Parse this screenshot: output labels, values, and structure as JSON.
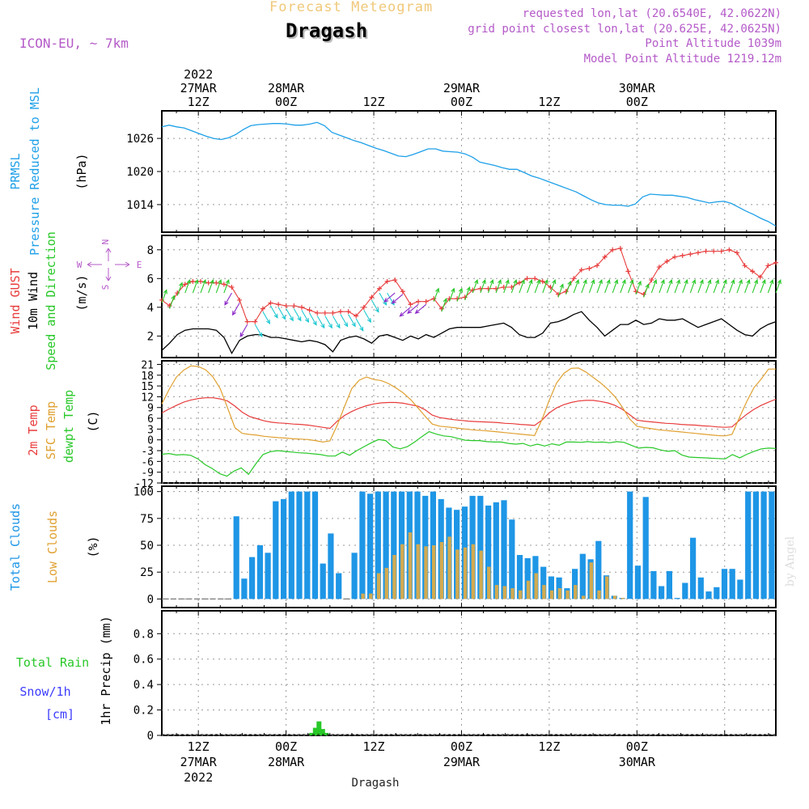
{
  "header": {
    "product": "Forecast Meteogram",
    "station": "Dragash",
    "model": "ICON-EU, ~ 7km",
    "requested": "requested lon,lat (20.6540E, 42.0622N)",
    "gridpoint": "grid point closest lon,lat (20.625E, 42.0625N)",
    "point_alt": "Point Altitude 1039m",
    "model_alt": "Model Point Altitude 1219.12m"
  },
  "footer": {
    "station": "Dragash",
    "credit": "by Angel"
  },
  "colors": {
    "pressure": "#1ea0e8",
    "gust": "#e83c3c",
    "wind": "#000000",
    "arrow_green": "#28c828",
    "arrow_cyan": "#1ec8d2",
    "arrow_purple": "#8c28c8",
    "temp": "#e83c3c",
    "sfc": "#e0a030",
    "dewpt": "#28c828",
    "total_clouds": "#1e96e6",
    "low_clouds": "#d2aa50",
    "rain": "#28c828",
    "snow": "#3c3cff",
    "header_purple": "#b45ac8",
    "header_orange": "#f0c87a"
  },
  "chart_data": [
    {
      "type": "line",
      "panel": "pressure",
      "ylabel": [
        "PRMSL",
        "Pressure Reduced to MSL"
      ],
      "units": "(hPa)",
      "ylim": [
        1009,
        1031
      ],
      "yticks": [
        1014,
        1020,
        1026
      ],
      "series": [
        {
          "name": "PRMSL",
          "values": [
            1028.1,
            1028.4,
            1028.1,
            1027.9,
            1027.4,
            1026.9,
            1026.4,
            1026.0,
            1025.8,
            1026.1,
            1026.7,
            1027.6,
            1028.3,
            1028.5,
            1028.6,
            1028.7,
            1028.7,
            1028.6,
            1028.4,
            1028.4,
            1028.6,
            1028.9,
            1028.3,
            1027.1,
            1026.6,
            1026.1,
            1025.6,
            1025.2,
            1024.7,
            1024.2,
            1023.8,
            1023.3,
            1022.8,
            1022.7,
            1023.1,
            1023.6,
            1024.1,
            1024.1,
            1023.7,
            1023.6,
            1023.5,
            1023.2,
            1022.6,
            1021.7,
            1021.4,
            1021.1,
            1020.7,
            1020.4,
            1020.4,
            1019.8,
            1019.2,
            1018.8,
            1018.3,
            1017.8,
            1017.3,
            1016.8,
            1016.3,
            1015.6,
            1014.9,
            1014.3,
            1014.0,
            1013.9,
            1013.9,
            1013.7,
            1014.1,
            1015.4,
            1015.9,
            1015.8,
            1015.7,
            1015.7,
            1015.5,
            1015.3,
            1014.9,
            1014.6,
            1014.3,
            1014.5,
            1014.6,
            1014.2,
            1013.5,
            1012.8,
            1012.2,
            1011.5,
            1010.9,
            1010.1
          ]
        }
      ]
    },
    {
      "type": "line",
      "panel": "wind",
      "ylabel": [
        "Wind GUST",
        "10m Wind",
        "Speed and Direction"
      ],
      "units": "(m/s)",
      "compass": [
        "N",
        "W",
        "E",
        "S"
      ],
      "ylim": [
        0.5,
        9.0
      ],
      "yticks": [
        2,
        4,
        6,
        8
      ],
      "series": [
        {
          "name": "Wind GUST",
          "values": [
            4.5,
            4.1,
            5.0,
            5.6,
            5.8,
            5.8,
            5.7,
            5.7,
            5.6,
            5.4,
            4.5,
            3.0,
            3.0,
            3.9,
            4.3,
            4.2,
            4.1,
            4.1,
            4.0,
            3.8,
            3.6,
            3.6,
            3.6,
            3.7,
            3.7,
            3.4,
            4.0,
            4.7,
            5.3,
            5.8,
            5.9,
            5.1,
            4.2,
            4.4,
            4.4,
            4.6,
            3.9,
            4.6,
            4.6,
            4.7,
            5.2,
            5.3,
            5.3,
            5.3,
            5.4,
            5.4,
            5.7,
            6.0,
            6.0,
            5.8,
            5.4,
            4.9,
            5.1,
            6.0,
            6.6,
            6.7,
            6.9,
            7.5,
            8.0,
            8.1,
            6.5,
            5.1,
            4.9,
            5.9,
            6.8,
            7.2,
            7.5,
            7.6,
            7.7,
            7.8,
            7.9,
            7.9,
            7.9,
            8.0,
            7.8,
            6.9,
            6.5,
            6.1,
            6.9,
            7.1
          ]
        },
        {
          "name": "10m Wind",
          "values": [
            1.0,
            1.5,
            2.1,
            2.4,
            2.5,
            2.5,
            2.5,
            2.4,
            1.9,
            0.8,
            1.7,
            2.0,
            2.1,
            2.1,
            1.9,
            1.9,
            1.8,
            1.7,
            1.6,
            1.7,
            1.6,
            1.4,
            0.9,
            1.7,
            1.9,
            2.0,
            1.8,
            1.5,
            2.0,
            2.1,
            1.9,
            1.7,
            2.0,
            1.8,
            2.1,
            1.9,
            2.2,
            2.5,
            2.6,
            2.6,
            2.6,
            2.6,
            2.7,
            2.8,
            2.9,
            2.6,
            2.1,
            1.9,
            1.9,
            2.2,
            2.9,
            3.0,
            3.2,
            3.5,
            3.7,
            3.1,
            2.6,
            2.0,
            2.4,
            2.8,
            2.8,
            3.1,
            2.8,
            2.9,
            3.2,
            3.1,
            3.1,
            3.2,
            2.9,
            2.6,
            2.8,
            3.0,
            3.2,
            2.8,
            2.4,
            2.1,
            2.0,
            2.5,
            2.8,
            3.0
          ]
        }
      ],
      "arrow_directions_deg": [
        200,
        200,
        200,
        200,
        200,
        200,
        200,
        200,
        200,
        30,
        30,
        30,
        330,
        330,
        330,
        330,
        330,
        330,
        330,
        330,
        330,
        330,
        330,
        330,
        330,
        330,
        330,
        330,
        330,
        330,
        50,
        50,
        50,
        50,
        50,
        200,
        200,
        200,
        200,
        200,
        200,
        200,
        200,
        200,
        200,
        200,
        200,
        200,
        200,
        200,
        200,
        200,
        200,
        200,
        200,
        200,
        200,
        200,
        200,
        200,
        200,
        200,
        200,
        200,
        200,
        200,
        200,
        200,
        200,
        200,
        200,
        200,
        200,
        200,
        200,
        200,
        200,
        200,
        200,
        200
      ]
    },
    {
      "type": "line",
      "panel": "temperature",
      "ylabel": [
        "2m Temp",
        "SFC Temp",
        "dewpt Temp"
      ],
      "units": "(C)",
      "ylim": [
        -12,
        22
      ],
      "yticks": [
        -12,
        -9,
        -6,
        -3,
        0,
        3,
        6,
        9,
        12,
        15,
        18,
        21
      ],
      "series": [
        {
          "name": "2m Temp",
          "values": [
            7.5,
            8.6,
            9.6,
            10.5,
            11.1,
            11.5,
            11.7,
            11.7,
            11.4,
            10.8,
            9.4,
            7.7,
            6.5,
            5.9,
            5.3,
            4.9,
            4.7,
            4.6,
            4.4,
            4.3,
            4.1,
            3.8,
            3.5,
            3.2,
            5.2,
            6.8,
            7.9,
            8.8,
            9.5,
            10.0,
            10.3,
            10.4,
            10.4,
            10.2,
            9.8,
            9.4,
            8.4,
            6.9,
            6.2,
            5.9,
            5.6,
            5.4,
            5.2,
            5.1,
            5.0,
            4.9,
            4.8,
            4.6,
            4.5,
            4.3,
            4.2,
            4.0,
            5.5,
            7.5,
            8.9,
            9.8,
            10.4,
            10.8,
            11.0,
            11.0,
            10.7,
            10.3,
            9.6,
            8.5,
            7.0,
            5.5,
            5.2,
            5.0,
            4.8,
            4.6,
            4.5,
            4.3,
            4.2,
            4.1,
            3.9,
            3.8,
            3.6,
            3.5,
            3.6,
            5.4,
            7.1,
            8.5,
            9.6,
            10.5,
            11.3
          ]
        },
        {
          "name": "SFC Temp",
          "values": [
            10.0,
            14.0,
            17.5,
            19.4,
            20.6,
            20.4,
            19.5,
            17.5,
            14.2,
            8.9,
            3.4,
            1.8,
            1.5,
            1.3,
            1.0,
            0.8,
            0.6,
            0.5,
            0.3,
            0.2,
            0.1,
            -0.2,
            -0.6,
            -0.3,
            4.1,
            9.3,
            14.3,
            16.6,
            17.5,
            16.8,
            16.5,
            15.7,
            14.5,
            13.1,
            11.3,
            9.0,
            6.6,
            4.4,
            3.8,
            3.6,
            3.4,
            3.1,
            2.9,
            2.7,
            2.6,
            2.4,
            2.2,
            2.0,
            1.8,
            1.6,
            1.4,
            1.2,
            5.6,
            11.0,
            15.8,
            18.5,
            19.9,
            20.0,
            18.9,
            17.4,
            15.9,
            14.1,
            12.0,
            9.1,
            5.8,
            3.8,
            3.4,
            3.1,
            2.8,
            2.6,
            2.4,
            2.2,
            2.0,
            1.8,
            1.6,
            1.4,
            1.2,
            1.1,
            1.5,
            6.1,
            10.6,
            14.5,
            16.9,
            19.7,
            19.7
          ]
        },
        {
          "name": "dewpt Temp",
          "values": [
            -4.0,
            -3.8,
            -4.2,
            -4.1,
            -4.3,
            -5.3,
            -6.9,
            -8.0,
            -9.4,
            -10.1,
            -8.7,
            -7.8,
            -9.6,
            -6.7,
            -4.1,
            -3.3,
            -3.0,
            -3.2,
            -3.4,
            -3.6,
            -3.7,
            -3.9,
            -4.1,
            -4.5,
            -4.5,
            -3.4,
            -4.3,
            -3.0,
            -1.9,
            -0.8,
            0.1,
            -0.2,
            -2.0,
            -2.5,
            -1.9,
            -0.6,
            0.9,
            2.3,
            1.6,
            1.1,
            0.9,
            0.4,
            -0.1,
            -0.2,
            -0.2,
            -0.5,
            -0.6,
            -0.6,
            -1.0,
            -1.2,
            -1.0,
            -1.7,
            -1.2,
            -1.7,
            -1.1,
            -1.5,
            -0.6,
            -0.6,
            -0.7,
            -0.5,
            -0.7,
            -0.6,
            -0.8,
            -0.5,
            -0.7,
            -1.5,
            -2.3,
            -2.1,
            -2.2,
            -2.8,
            -3.2,
            -3.0,
            -4.2,
            -4.8,
            -4.9,
            -5.0,
            -5.1,
            -5.2,
            -5.3,
            -4.1,
            -5.0,
            -4.0,
            -3.2,
            -2.5,
            -2.3,
            -2.4
          ]
        }
      ]
    },
    {
      "type": "bar",
      "panel": "clouds",
      "ylabel": [
        "Total Clouds",
        "Low Clouds"
      ],
      "units": "(%)",
      "ylim": [
        -8,
        105
      ],
      "yticks": [
        0,
        25,
        50,
        75,
        100
      ],
      "series": [
        {
          "name": "Total Clouds",
          "values": [
            0,
            0,
            0,
            0,
            0,
            0,
            0,
            0,
            0,
            77,
            19,
            39,
            50,
            43,
            91,
            93,
            100,
            100,
            100,
            100,
            33,
            61,
            24,
            0,
            43,
            100,
            98,
            100,
            100,
            100,
            100,
            100,
            100,
            96,
            100,
            93,
            85,
            83,
            86,
            96,
            96,
            87,
            90,
            92,
            74,
            41,
            38,
            40,
            30,
            21,
            20,
            10,
            28,
            42,
            37,
            54,
            22,
            3,
            1,
            100,
            31,
            95,
            26,
            12,
            26,
            1,
            15,
            57,
            20,
            7,
            11,
            28,
            28,
            18,
            100,
            100,
            100,
            100
          ]
        },
        {
          "name": "Low Clouds",
          "values": [
            0,
            0,
            0,
            0,
            0,
            0,
            0,
            0,
            0,
            0,
            0,
            0,
            0,
            0,
            0,
            0,
            0,
            0,
            0,
            0,
            0,
            0,
            0,
            0,
            0,
            5,
            5,
            24,
            29,
            41,
            51,
            62,
            51,
            49,
            50,
            53,
            58,
            46,
            48,
            51,
            45,
            30,
            13,
            12,
            10,
            8,
            17,
            24,
            13,
            8,
            10,
            8,
            13,
            3,
            34,
            8,
            21,
            3,
            1,
            0,
            0,
            0,
            0,
            0,
            0,
            0,
            0,
            0,
            0,
            0,
            0,
            0,
            0,
            0,
            0,
            0,
            0,
            0
          ]
        }
      ]
    },
    {
      "type": "bar",
      "panel": "precip",
      "ylabel": "1hr Precip (mm)",
      "side_labels": [
        "Total Rain",
        "Snow/1h",
        "[cm]"
      ],
      "ylim": [
        0,
        0.98
      ],
      "yticks": [
        "0",
        "0.2",
        "0.4",
        "0.6",
        "0.8"
      ],
      "series": [
        {
          "name": "Total Rain",
          "hours": [
            27.5,
            28.0,
            28.5,
            29.0,
            29.5
          ],
          "values": [
            0.02,
            0.06,
            0.11,
            0.05,
            0.02
          ]
        },
        {
          "name": "Snow/1h",
          "hours": [],
          "values": []
        }
      ]
    }
  ],
  "time_axis": {
    "start_hour": 7.0,
    "end_hour": 91.0,
    "top_labels": [
      {
        "hour": 12,
        "lines": [
          "2022",
          "27MAR",
          "12Z"
        ]
      },
      {
        "hour": 24,
        "lines": [
          "28MAR",
          "00Z"
        ]
      },
      {
        "hour": 36,
        "lines": [
          "12Z"
        ]
      },
      {
        "hour": 48,
        "lines": [
          "29MAR",
          "00Z"
        ]
      },
      {
        "hour": 60,
        "lines": [
          "12Z"
        ]
      },
      {
        "hour": 72,
        "lines": [
          "30MAR",
          "00Z"
        ]
      }
    ],
    "bottom_labels": [
      {
        "hour": 12,
        "lines": [
          "12Z",
          "27MAR",
          "2022"
        ]
      },
      {
        "hour": 24,
        "lines": [
          "00Z",
          "28MAR"
        ]
      },
      {
        "hour": 36,
        "lines": [
          "12Z"
        ]
      },
      {
        "hour": 48,
        "lines": [
          "00Z",
          "29MAR"
        ]
      },
      {
        "hour": 60,
        "lines": [
          "12Z"
        ]
      },
      {
        "hour": 72,
        "lines": [
          "00Z",
          "30MAR"
        ]
      }
    ]
  }
}
